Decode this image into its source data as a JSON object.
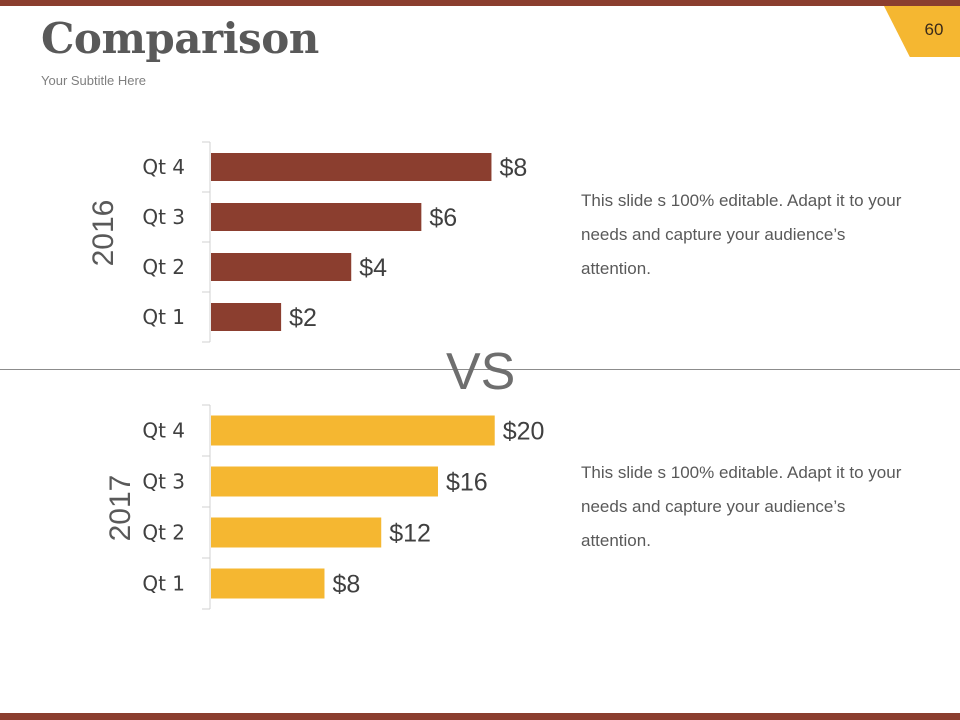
{
  "header": {
    "title": "Comparison",
    "subtitle": "Your Subtitle Here",
    "page_number": "60"
  },
  "colors": {
    "brown": "#8b3e2f",
    "gold": "#f5b731",
    "text": "#595959"
  },
  "center_label": "VS",
  "descriptions": [
    "This slide s 100% editable. Adapt it to your needs and capture your audience’s attention.",
    "This slide s 100% editable. Adapt it to your needs and capture your audience’s attention."
  ],
  "chart_data": [
    {
      "type": "bar",
      "orientation": "horizontal",
      "group_label": "2016",
      "categories": [
        "Qt 1",
        "Qt 2",
        "Qt 3",
        "Qt 4"
      ],
      "values": [
        2,
        4,
        6,
        8
      ],
      "value_labels": [
        "$2",
        "$4",
        "$6",
        "$8"
      ],
      "xlim": [
        0,
        8.7
      ],
      "grid": false,
      "color": "#8b3e2f"
    },
    {
      "type": "bar",
      "orientation": "horizontal",
      "group_label": "2017",
      "categories": [
        "Qt 1",
        "Qt 2",
        "Qt 3",
        "Qt 4"
      ],
      "values": [
        8,
        12,
        16,
        20
      ],
      "value_labels": [
        "$8",
        "$12",
        "$16",
        "$20"
      ],
      "xlim": [
        0,
        21.5
      ],
      "grid": false,
      "color": "#f5b731"
    }
  ]
}
